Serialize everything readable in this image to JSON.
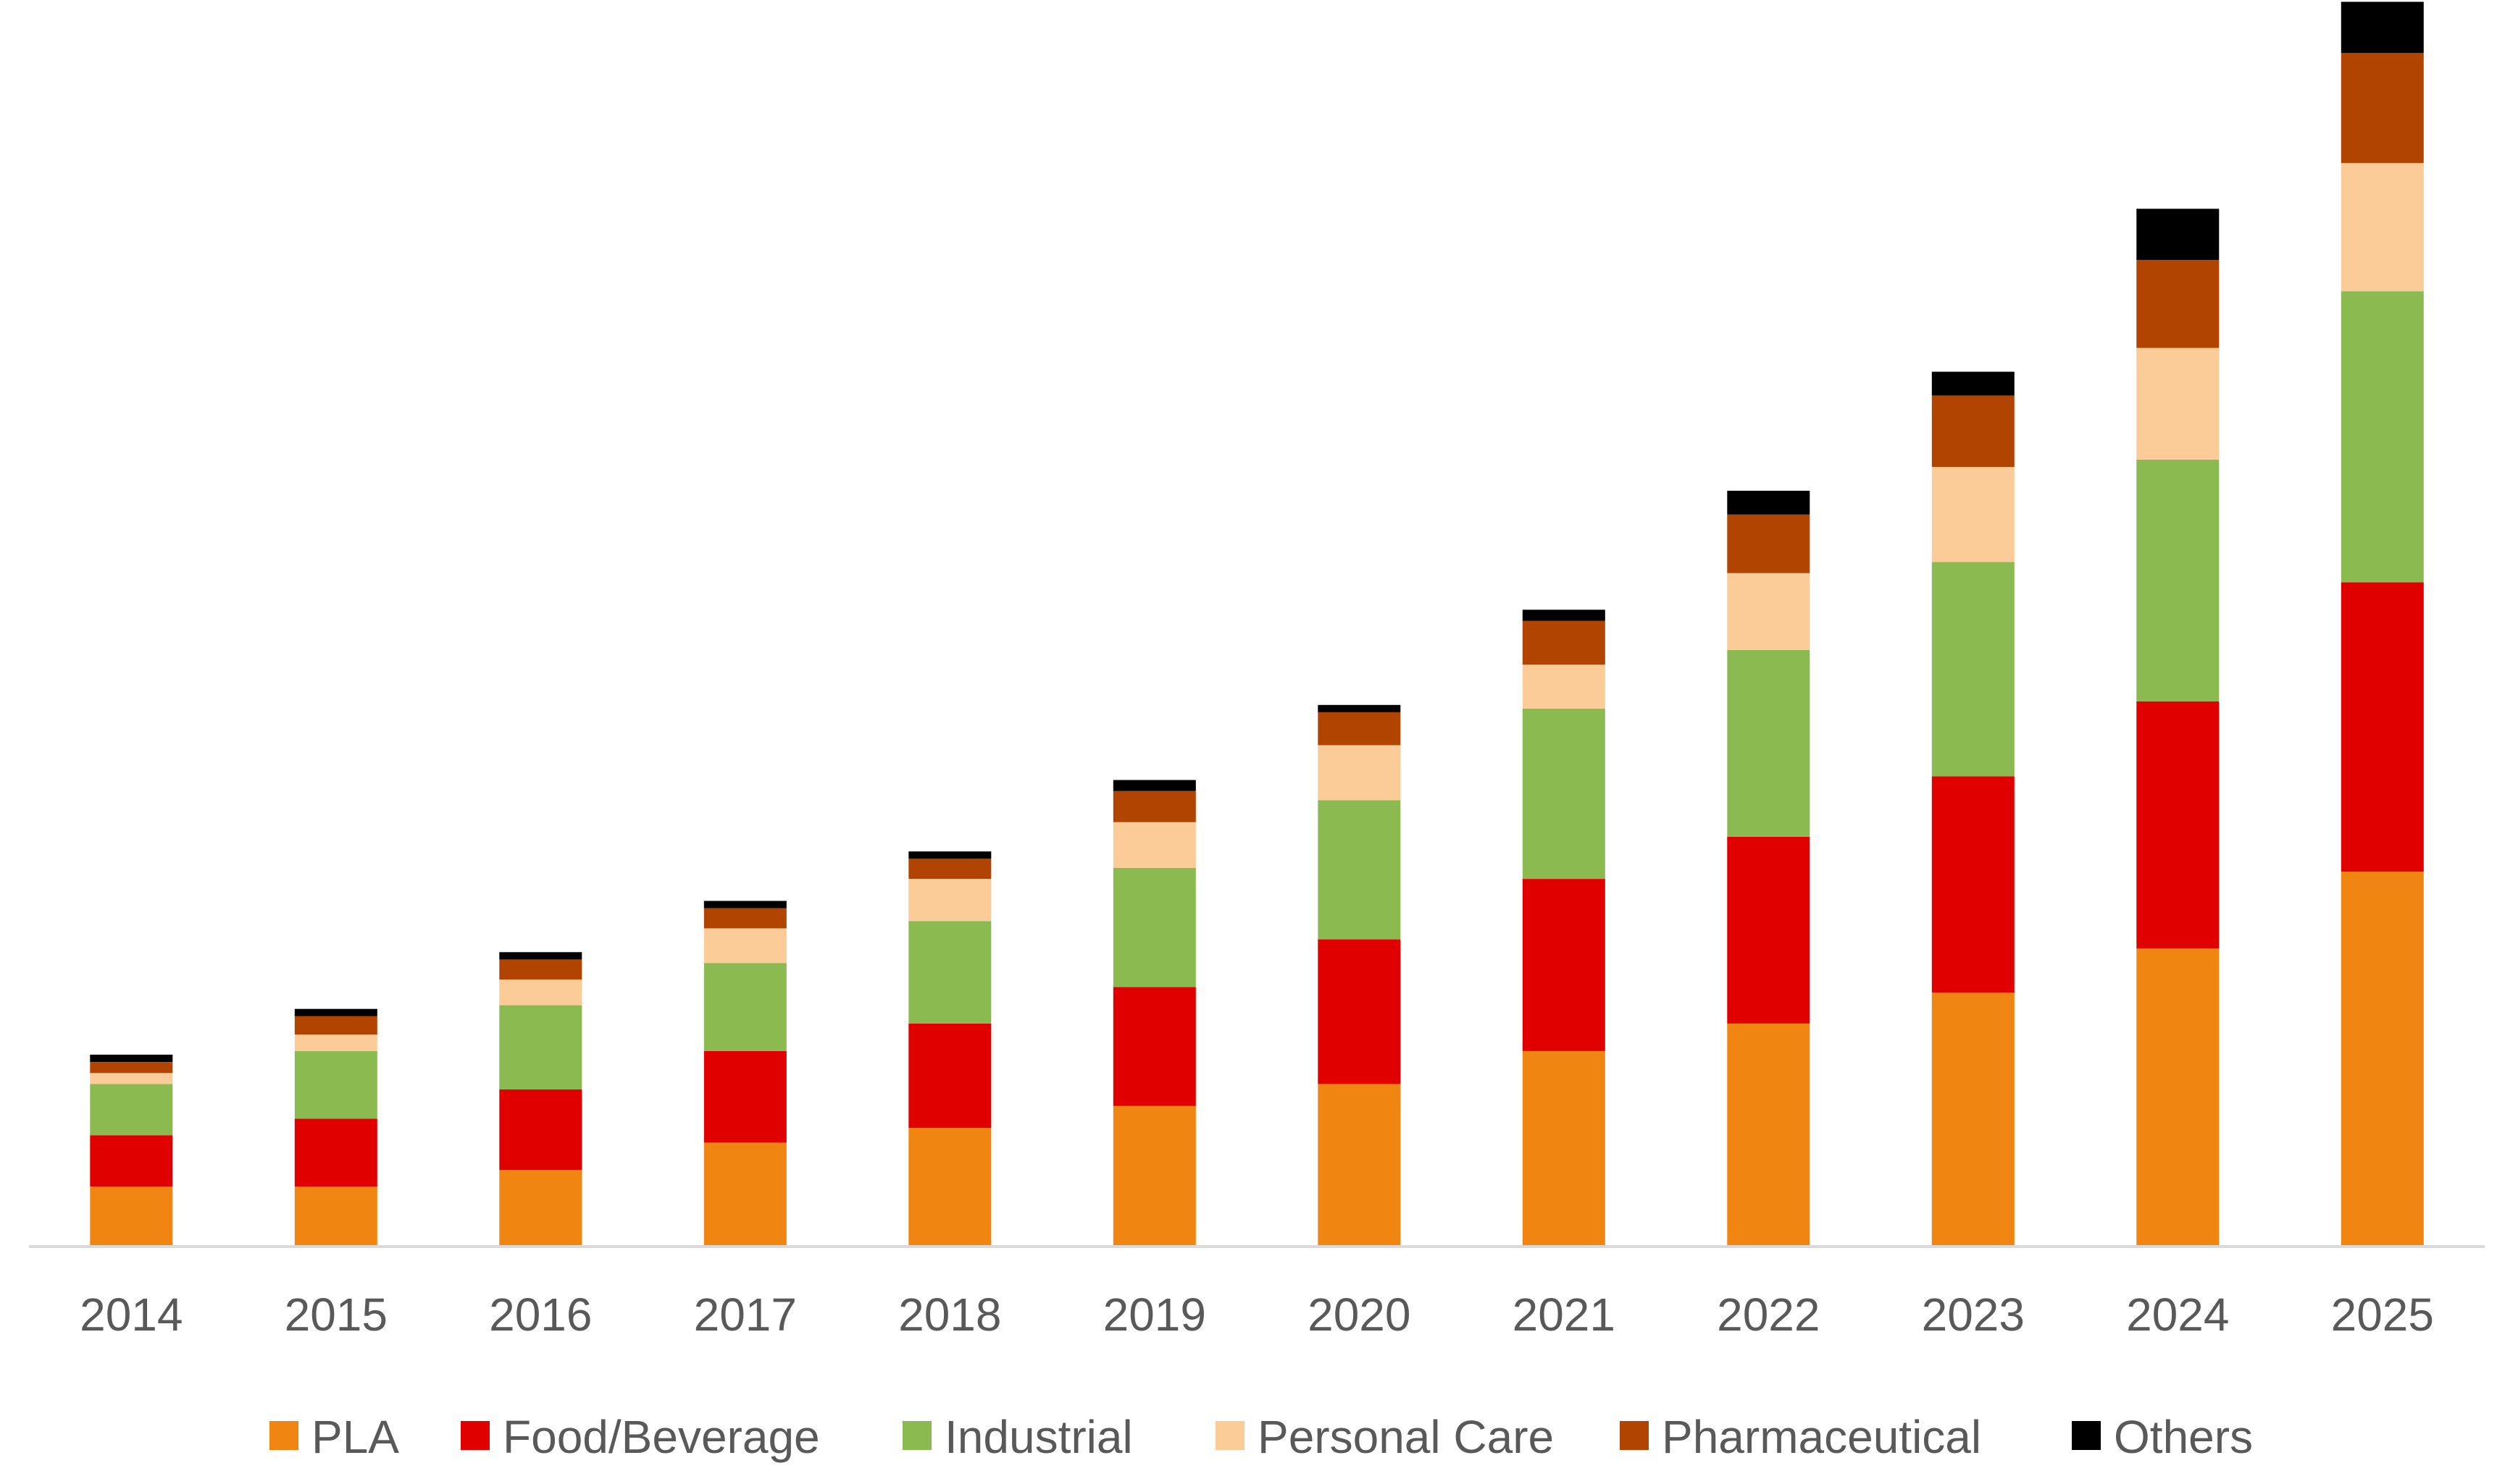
{
  "chart_data": {
    "type": "bar",
    "stacked": true,
    "title": "",
    "xlabel": "",
    "ylabel": "",
    "categories": [
      "2014",
      "2015",
      "2016",
      "2017",
      "2018",
      "2019",
      "2020",
      "2021",
      "2022",
      "2023",
      "2024",
      "2025"
    ],
    "ylim": [
      0,
      340
    ],
    "grid": false,
    "legend_position": "bottom",
    "series": [
      {
        "name": "PLA",
        "color": "#F08512",
        "values": [
          16,
          16,
          20.5,
          28,
          32,
          38,
          44,
          53,
          60.5,
          69,
          81,
          102
        ]
      },
      {
        "name": "Food/Beverage",
        "color": "#E00000",
        "values": [
          14,
          18.5,
          22,
          25,
          28.5,
          32.5,
          39.5,
          47,
          51,
          59,
          67.5,
          79
        ]
      },
      {
        "name": "Industrial",
        "color": "#8BBB50",
        "values": [
          14,
          18.5,
          23,
          24,
          28,
          32.5,
          38,
          46.5,
          51,
          58.5,
          66,
          79.5
        ]
      },
      {
        "name": "Personal Care",
        "color": "#FBCB98",
        "values": [
          3,
          4.5,
          7,
          9.5,
          11.5,
          12.5,
          15,
          12,
          21,
          26,
          30.5,
          35
        ]
      },
      {
        "name": "Pharmaceutical",
        "color": "#B04400",
        "values": [
          3,
          5,
          5.5,
          5.5,
          5.5,
          8.5,
          9,
          12,
          16,
          19.5,
          24,
          30
        ]
      },
      {
        "name": "Others",
        "color": "#000000",
        "values": [
          2,
          2,
          2,
          2,
          2,
          3,
          2,
          3,
          6.5,
          6.5,
          14,
          14
        ]
      }
    ]
  }
}
